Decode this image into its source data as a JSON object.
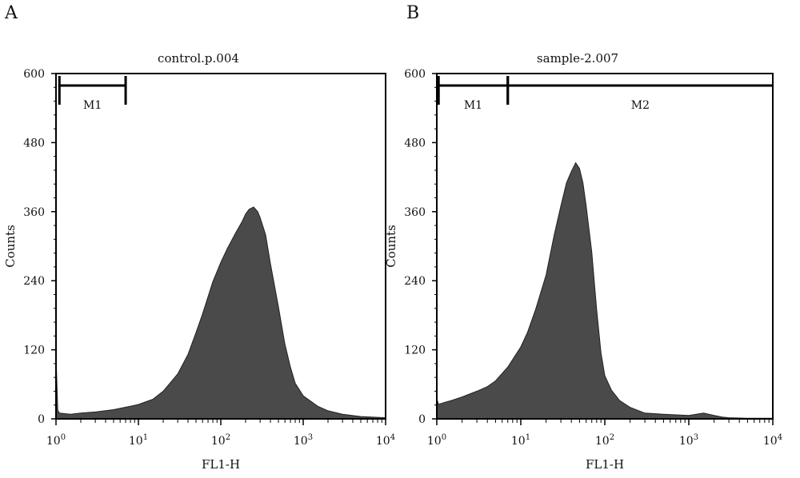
{
  "panels": [
    {
      "letter": "A"
    },
    {
      "letter": "B"
    }
  ],
  "chart_data": [
    {
      "type": "area",
      "title": "control.p.004",
      "xlabel": "FL1-H",
      "ylabel": "Counts",
      "xscale": "log",
      "xlim": [
        1,
        10000
      ],
      "ylim": [
        0,
        600
      ],
      "y_ticks": [
        "0",
        "120",
        "240",
        "360",
        "480",
        "600"
      ],
      "x_ticks": [
        {
          "base": "10",
          "exp": "0"
        },
        {
          "base": "10",
          "exp": "1"
        },
        {
          "base": "10",
          "exp": "2"
        },
        {
          "base": "10",
          "exp": "3"
        },
        {
          "base": "10",
          "exp": "4"
        }
      ],
      "fill_color": "#4a4a4a",
      "markers": [
        {
          "label": "M1",
          "range": [
            1.1,
            7
          ]
        }
      ],
      "series": [
        {
          "x": [
            1.0,
            1.05,
            1.1,
            1.5,
            2,
            3,
            5,
            8,
            10,
            15,
            20,
            30,
            40,
            50,
            60,
            70,
            80,
            100,
            120,
            150,
            180,
            200,
            220,
            250,
            280,
            300,
            350,
            400,
            500,
            600,
            700,
            800,
            1000,
            1500,
            2000,
            3000,
            5000,
            10000
          ],
          "y": [
            110,
            15,
            10,
            8,
            10,
            12,
            16,
            22,
            25,
            34,
            48,
            78,
            112,
            150,
            182,
            212,
            238,
            272,
            296,
            322,
            342,
            356,
            364,
            368,
            360,
            350,
            320,
            270,
            195,
            130,
            90,
            62,
            40,
            22,
            14,
            8,
            4,
            2
          ]
        }
      ]
    },
    {
      "type": "area",
      "title": "sample-2.007",
      "xlabel": "FL1-H",
      "ylabel": "Counts",
      "xscale": "log",
      "xlim": [
        1,
        10000
      ],
      "ylim": [
        0,
        600
      ],
      "y_ticks": [
        "0",
        "120",
        "240",
        "360",
        "480",
        "600"
      ],
      "x_ticks": [
        {
          "base": "10",
          "exp": "0"
        },
        {
          "base": "10",
          "exp": "1"
        },
        {
          "base": "10",
          "exp": "2"
        },
        {
          "base": "10",
          "exp": "3"
        },
        {
          "base": "10",
          "exp": "4"
        }
      ],
      "fill_color": "#4a4a4a",
      "markers": [
        {
          "label": "M1",
          "range": [
            1.05,
            7
          ]
        },
        {
          "label": "M2",
          "range": [
            7,
            10000
          ]
        }
      ],
      "series": [
        {
          "x": [
            1.0,
            1.05,
            1.2,
            1.5,
            2,
            3,
            4,
            5,
            7,
            10,
            12,
            15,
            20,
            25,
            30,
            35,
            40,
            45,
            50,
            55,
            60,
            70,
            80,
            90,
            100,
            120,
            150,
            200,
            300,
            500,
            1000,
            1500,
            2000,
            2500,
            3000,
            5000,
            10000
          ],
          "y": [
            35,
            25,
            28,
            32,
            38,
            48,
            56,
            66,
            90,
            125,
            150,
            190,
            250,
            320,
            370,
            410,
            430,
            445,
            435,
            410,
            370,
            290,
            190,
            115,
            75,
            50,
            32,
            20,
            10,
            8,
            6,
            10,
            6,
            3,
            2,
            1,
            1
          ]
        }
      ]
    }
  ]
}
